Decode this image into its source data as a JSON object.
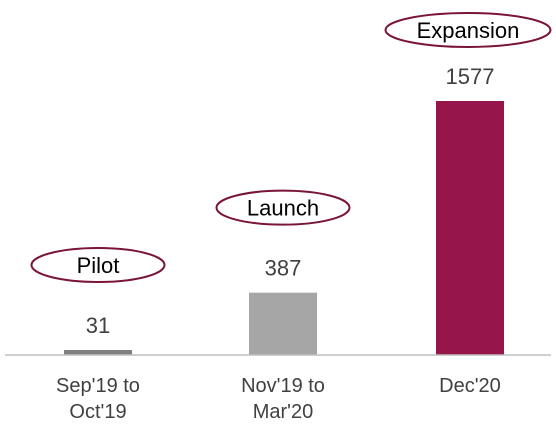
{
  "chart_data": {
    "type": "bar",
    "categories": [
      [
        "Sep'19 to",
        "Oct'19"
      ],
      [
        "Nov'19 to",
        "Mar'20"
      ],
      [
        "Dec'20"
      ]
    ],
    "values": [
      31,
      387,
      1577
    ],
    "phases": [
      "Pilot",
      "Launch",
      "Expansion"
    ],
    "colors": [
      "#808080",
      "#a6a6a6",
      "#96154a"
    ],
    "phase_outline_color": "#7a1538",
    "title": "",
    "xlabel": "",
    "ylabel": "",
    "ylim": [
      0,
      1577
    ],
    "grid": false,
    "legend": "none"
  }
}
